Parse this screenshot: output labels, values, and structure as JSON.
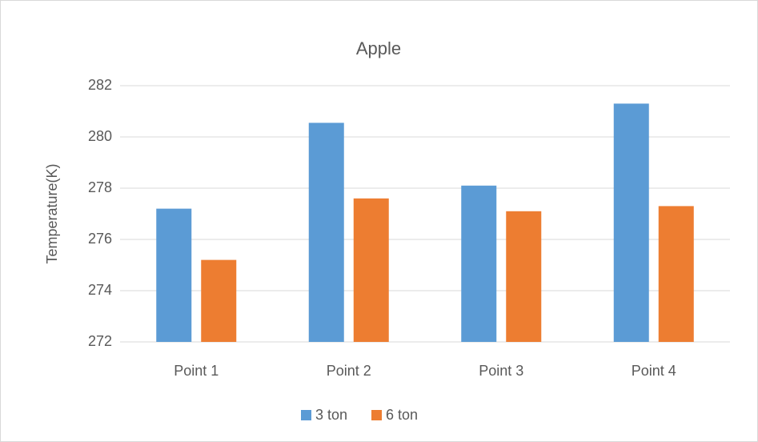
{
  "chart_data": {
    "type": "bar",
    "title": "Apple",
    "y_label": "Temperature(K)",
    "categories": [
      "Point 1",
      "Point 2",
      "Point 3",
      "Point 4"
    ],
    "series": [
      {
        "name": "3 ton",
        "color": "#5b9bd5",
        "values": [
          277.2,
          280.55,
          278.1,
          281.3
        ]
      },
      {
        "name": "6 ton",
        "color": "#ed7d31",
        "values": [
          275.2,
          277.6,
          277.1,
          277.3
        ]
      }
    ],
    "ylim": [
      272,
      282
    ],
    "yticks": [
      272,
      274,
      276,
      278,
      280,
      282
    ],
    "grid": true,
    "legend": "bottom"
  }
}
